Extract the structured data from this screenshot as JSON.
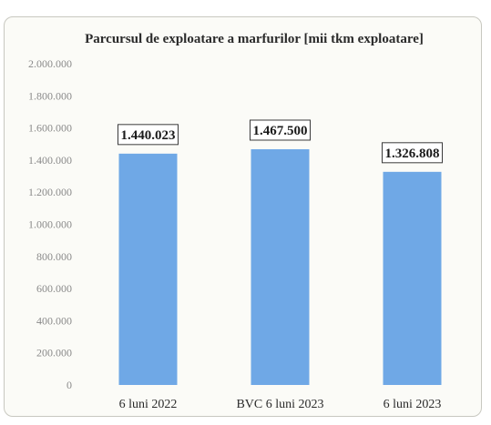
{
  "chart_data": {
    "type": "bar",
    "title": "Parcursul de exploatare a marfurilor [mii tkm exploatare]",
    "categories": [
      "6 luni 2022",
      "BVC 6 luni 2023",
      "6 luni 2023"
    ],
    "values": [
      1440023,
      1467500,
      1326808
    ],
    "data_labels": [
      "1.440.023",
      "1.467.500",
      "1.326.808"
    ],
    "ylim": [
      0,
      2000000
    ],
    "yticks": [
      0,
      200000,
      400000,
      600000,
      800000,
      1000000,
      1200000,
      1400000,
      1600000,
      1800000,
      2000000
    ],
    "ytick_labels": [
      "0",
      "200.000",
      "400.000",
      "600.000",
      "800.000",
      "1.000.000",
      "1.200.000",
      "1.400.000",
      "1.600.000",
      "1.800.000",
      "2.000.000"
    ],
    "xlabel": "",
    "ylabel": "",
    "grid": false,
    "legend": "none",
    "bar_color": "#6fa8e6"
  }
}
